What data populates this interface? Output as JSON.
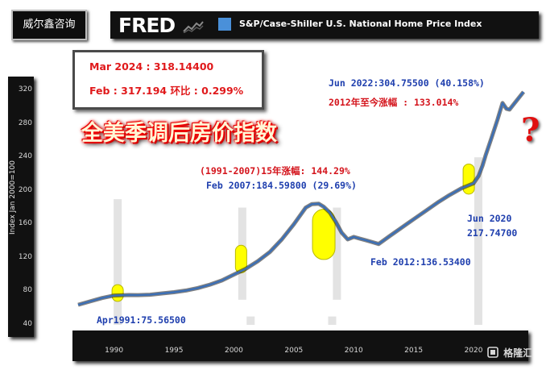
{
  "brand": {
    "name": "威尔鑫咨询"
  },
  "header": {
    "logo": "FRED",
    "series_title": "S&P/Case-Shiller U.S. National Home Price Index",
    "swatch_color": "#4a90d9"
  },
  "info_box": {
    "line1": "Mar 2024 : 318.14400",
    "line2": "Feb : 317.194  环比 : 0.299%"
  },
  "headline": "全美季调后房价指数",
  "question_mark": "?",
  "annotations": {
    "jun2022": "Jun 2022:304.75500 (40.158%)",
    "since2012": "2012年至今涨幅 : 133.014%",
    "rise_1991_2007": "(1991-2007)15年涨幅: 144.29%",
    "feb2007": "Feb 2007:184.59800 (29.69%)",
    "jun2020_a": "Jun 2020",
    "jun2020_b": "217.74700",
    "feb2012": "Feb 2012:136.53400",
    "apr1991": "Apr1991:75.56500"
  },
  "watermark": "格隆汇",
  "colors": {
    "line": "#3b6fb6",
    "line_shadow": "#1a1a1a",
    "highlight": "#ffff00",
    "highlight_edge": "#b8b800",
    "gray_bar": "#e3e3e3",
    "title_red": "#e0191b"
  },
  "chart_data": {
    "type": "line",
    "title": "S&P/Case-Shiller U.S. National Home Price Index",
    "xlabel": "",
    "ylabel": "Index Jan 2000=100",
    "xlim": [
      1987,
      2024.3
    ],
    "ylim": [
      40,
      330
    ],
    "yticks": [
      "40",
      "80",
      "120",
      "160",
      "200",
      "240",
      "280",
      "320"
    ],
    "xticks": [
      "1990",
      "1995",
      "2000",
      "2005",
      "2010",
      "2015",
      "2020"
    ],
    "x": [
      1987.0,
      1988.0,
      1989.0,
      1990.0,
      1991.25,
      1992.0,
      1993.0,
      1994.0,
      1995.0,
      1996.0,
      1997.0,
      1998.0,
      1999.0,
      2000.0,
      2001.0,
      2002.0,
      2003.0,
      2004.0,
      2005.0,
      2006.0,
      2006.5,
      2007.08,
      2007.5,
      2008.0,
      2008.5,
      2009.0,
      2009.5,
      2010.0,
      2010.5,
      2011.0,
      2011.5,
      2012.08,
      2013.0,
      2014.0,
      2015.0,
      2016.0,
      2017.0,
      2018.0,
      2019.0,
      2019.5,
      2020.0,
      2020.42,
      2020.75,
      2021.0,
      2021.5,
      2022.0,
      2022.42,
      2022.75,
      2023.0,
      2023.5,
      2024.17
    ],
    "y": [
      64,
      68,
      72,
      75,
      75.6,
      75.5,
      76,
      77.5,
      79,
      81,
      84,
      88,
      93,
      100,
      107,
      116,
      127,
      142,
      160,
      180,
      184,
      184.6,
      181,
      174,
      163,
      150,
      142,
      145,
      143,
      141,
      139,
      136.5,
      146,
      156,
      166,
      176,
      186,
      195,
      203,
      206,
      209,
      217.7,
      230,
      242,
      263,
      285,
      304.8,
      298,
      297,
      306,
      318.1
    ],
    "series": [
      {
        "name": "S&P/Case-Shiller U.S. National Home Price Index"
      }
    ],
    "gray_bars": [
      {
        "year": 1990.3,
        "low": 40,
        "high": 190
      },
      {
        "year": 2000.7,
        "low": 70,
        "high": 180
      },
      {
        "year": 2008.6,
        "low": 70,
        "high": 180
      },
      {
        "year": 2020.4,
        "low": 40,
        "high": 240
      },
      {
        "year": 2001.4,
        "low": 40,
        "high": 50
      },
      {
        "year": 2008.2,
        "low": 40,
        "high": 50
      }
    ],
    "highlights": [
      {
        "year": 1990.3,
        "low": 68,
        "high": 88
      },
      {
        "year": 2000.6,
        "low": 102,
        "high": 135
      },
      {
        "year": 2007.5,
        "low": 118,
        "high": 178
      },
      {
        "year": 2019.6,
        "low": 196,
        "high": 232
      }
    ]
  }
}
